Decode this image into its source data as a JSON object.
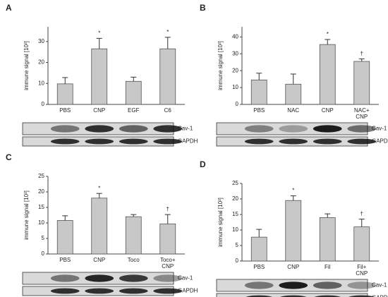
{
  "chart_data": [
    {
      "type": "bar",
      "panel": "A",
      "y_label": "immune signal [10³]",
      "categories": [
        "PBS",
        "CNP",
        "EGF",
        "C6"
      ],
      "values": [
        9.8,
        26.5,
        11,
        26.5
      ],
      "errors": [
        3,
        5,
        2,
        5.5
      ],
      "annotations": [
        null,
        "*",
        null,
        "*"
      ],
      "color": "#c8c8c8",
      "ylim": [
        0,
        37
      ],
      "yticks": [
        0,
        10,
        20,
        30
      ],
      "blot_labels": [
        "Cav-1",
        "GAPDH"
      ]
    },
    {
      "type": "bar",
      "panel": "B",
      "y_label": "immune signal [10³]",
      "categories": [
        "PBS",
        "NAC",
        "CNP",
        [
          "NAC+",
          "CNP"
        ]
      ],
      "values": [
        14.5,
        12,
        35.5,
        25.5
      ],
      "errors": [
        4,
        6,
        3,
        1.5
      ],
      "annotations": [
        null,
        null,
        "*",
        "†"
      ],
      "color": "#c8c8c8",
      "ylim": [
        0,
        46
      ],
      "yticks": [
        0,
        10,
        20,
        30,
        40
      ],
      "blot_labels": [
        "Cav-1",
        "GAPDH"
      ]
    },
    {
      "type": "bar",
      "panel": "C",
      "y_label": "immune signal [10³]",
      "categories": [
        "PBS",
        "CNP",
        "Toco",
        [
          "Toco+",
          "CNP"
        ]
      ],
      "values": [
        10.8,
        18,
        12,
        9.7
      ],
      "errors": [
        1.5,
        1.5,
        0.7,
        3
      ],
      "annotations": [
        null,
        "*",
        null,
        "†"
      ],
      "color": "#c8c8c8",
      "ylim": [
        0,
        25
      ],
      "yticks": [
        0,
        5,
        10,
        15,
        20,
        25
      ],
      "blot_labels": [
        "Cav-1",
        "GAPDH"
      ]
    },
    {
      "type": "bar",
      "panel": "D",
      "y_label": "immune signal [10³]",
      "categories": [
        "PBS",
        "CNP",
        "Fil",
        [
          "Fil+",
          "CNP"
        ]
      ],
      "values": [
        7.7,
        19.5,
        14,
        11
      ],
      "errors": [
        2.5,
        1.5,
        1.2,
        2.5
      ],
      "annotations": [
        null,
        "*",
        null,
        "†"
      ],
      "color": "#c8c8c8",
      "ylim": [
        0,
        25
      ],
      "yticks": [
        0,
        5,
        10,
        15,
        20,
        25
      ],
      "blot_labels": [
        "Cav-1",
        "GAPDH"
      ]
    }
  ]
}
